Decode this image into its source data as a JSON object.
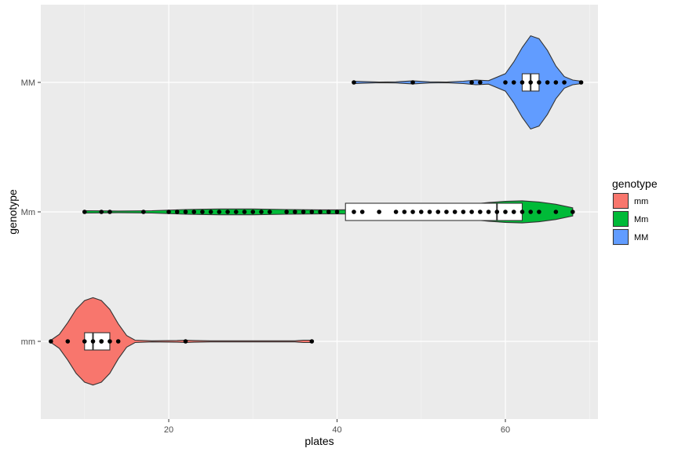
{
  "chart_data": {
    "type": "violin",
    "title": "",
    "xlabel": "plates",
    "ylabel": "genotype",
    "xlim": [
      4.8,
      71.0
    ],
    "x_ticks": [
      20,
      40,
      60
    ],
    "categories": [
      "mm",
      "Mm",
      "MM"
    ],
    "grid": true,
    "legend": {
      "title": "genotype",
      "placement": "right"
    },
    "series": [
      {
        "name": "mm",
        "color": "#F8766D",
        "box": {
          "q1": 10,
          "median": 11,
          "q3": 13
        },
        "points": [
          6,
          8,
          10,
          11,
          12,
          12,
          13,
          14,
          22,
          37
        ],
        "density": [
          [
            6,
            0.02
          ],
          [
            7,
            0.12
          ],
          [
            8,
            0.32
          ],
          [
            9,
            0.55
          ],
          [
            10,
            0.7
          ],
          [
            11,
            0.75
          ],
          [
            12,
            0.7
          ],
          [
            13,
            0.55
          ],
          [
            14,
            0.3
          ],
          [
            15,
            0.1
          ],
          [
            16,
            0.02
          ],
          [
            18,
            0.01
          ],
          [
            21,
            0.015
          ],
          [
            22,
            0.02
          ],
          [
            23,
            0.015
          ],
          [
            25,
            0.01
          ],
          [
            35,
            0.01
          ],
          [
            36,
            0.02
          ],
          [
            37,
            0.02
          ]
        ]
      },
      {
        "name": "Mm",
        "color": "#00BA38",
        "box": {
          "q1": 41,
          "median": 59,
          "q3": 62
        },
        "points": [
          10,
          12,
          13,
          17,
          20,
          21,
          22,
          23,
          24,
          25,
          26,
          27,
          28,
          29,
          30,
          31,
          32,
          34,
          35,
          36,
          37,
          38,
          39,
          40,
          42,
          43,
          45,
          47,
          48,
          49,
          50,
          51,
          52,
          53,
          54,
          55,
          56,
          57,
          58,
          59,
          60,
          61,
          62,
          63,
          64,
          66,
          68
        ],
        "density": [
          [
            10,
            0.02
          ],
          [
            14,
            0.015
          ],
          [
            18,
            0.02
          ],
          [
            22,
            0.04
          ],
          [
            26,
            0.05
          ],
          [
            30,
            0.05
          ],
          [
            34,
            0.04
          ],
          [
            38,
            0.035
          ],
          [
            40,
            0.035
          ],
          [
            44,
            0.04
          ],
          [
            48,
            0.06
          ],
          [
            52,
            0.09
          ],
          [
            56,
            0.13
          ],
          [
            58,
            0.16
          ],
          [
            60,
            0.18
          ],
          [
            62,
            0.19
          ],
          [
            64,
            0.17
          ],
          [
            66,
            0.13
          ],
          [
            68,
            0.07
          ]
        ]
      },
      {
        "name": "MM",
        "color": "#619CFF",
        "box": {
          "q1": 62,
          "median": 63,
          "q3": 64
        },
        "points": [
          42,
          49,
          56,
          57,
          60,
          61,
          62,
          63,
          64,
          65,
          66,
          67,
          69
        ],
        "density": [
          [
            42,
            0.02
          ],
          [
            43,
            0.015
          ],
          [
            45,
            0.005
          ],
          [
            47,
            0.01
          ],
          [
            49,
            0.025
          ],
          [
            51,
            0.01
          ],
          [
            53,
            0.005
          ],
          [
            55,
            0.02
          ],
          [
            56.5,
            0.04
          ],
          [
            58,
            0.03
          ],
          [
            60,
            0.15
          ],
          [
            61,
            0.35
          ],
          [
            62,
            0.6
          ],
          [
            63,
            0.8
          ],
          [
            64,
            0.75
          ],
          [
            65,
            0.55
          ],
          [
            66,
            0.28
          ],
          [
            67,
            0.1
          ],
          [
            68,
            0.04
          ],
          [
            69,
            0.02
          ]
        ]
      }
    ]
  }
}
